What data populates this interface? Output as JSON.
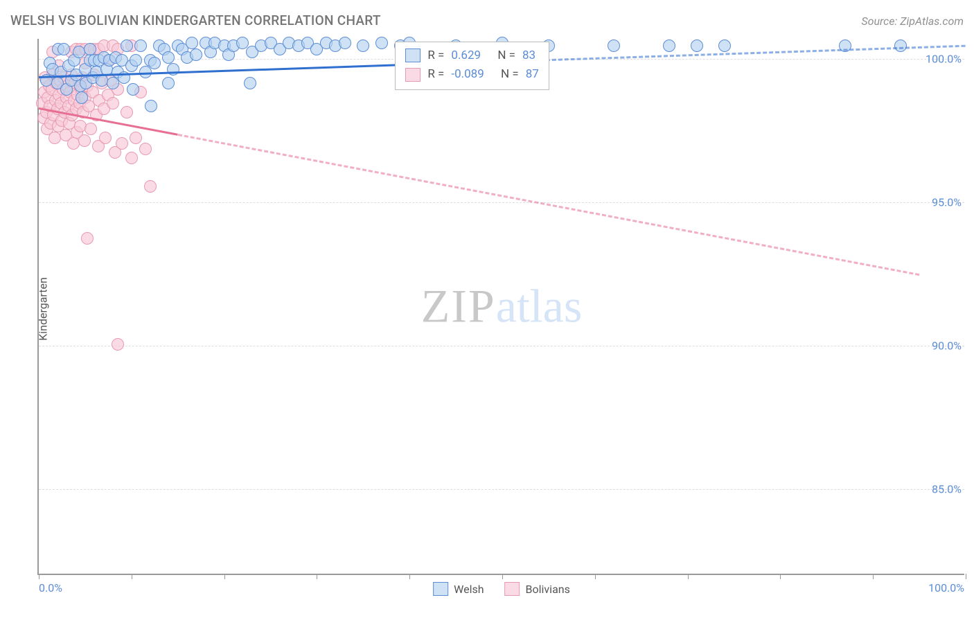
{
  "title": "WELSH VS BOLIVIAN KINDERGARTEN CORRELATION CHART",
  "source": "Source: ZipAtlas.com",
  "ylabel": "Kindergarten",
  "watermark": {
    "zip": "ZIP",
    "atlas": "atlas"
  },
  "axes": {
    "xlim": [
      0,
      100
    ],
    "ylim": [
      82,
      100.7
    ],
    "xticks": [
      0,
      10,
      20,
      30,
      40,
      50,
      60,
      70,
      80,
      90,
      100
    ],
    "xtick_labels": {
      "0": "0.0%",
      "100": "100.0%"
    },
    "yticks": [
      85,
      90,
      95,
      100
    ],
    "ytick_labels": {
      "85": "85.0%",
      "90": "90.0%",
      "95": "95.0%",
      "100": "100.0%"
    },
    "grid_color": "#dddddd",
    "axis_color": "#999999",
    "tick_label_color": "#5b8dd6",
    "label_color": "#555555"
  },
  "series": {
    "welsh": {
      "label": "Welsh",
      "fill_color": "#b4d1f0a6",
      "stroke_color": "#5b8dd6",
      "trend_color": "#2f6fd0",
      "trend_width": 3,
      "trend_dash_after_x": 40,
      "marker_radius": 9,
      "R": "0.629",
      "N": "83",
      "trend": {
        "x1": 0,
        "y1": 99.4,
        "x2": 100,
        "y2": 100.5
      },
      "points": [
        [
          0.8,
          99.2
        ],
        [
          1.2,
          99.8
        ],
        [
          1.5,
          99.6
        ],
        [
          2.1,
          100.3
        ],
        [
          2.0,
          99.1
        ],
        [
          2.4,
          99.5
        ],
        [
          2.7,
          100.3
        ],
        [
          3.0,
          98.9
        ],
        [
          3.2,
          99.7
        ],
        [
          3.5,
          99.2
        ],
        [
          3.8,
          99.9
        ],
        [
          4.0,
          99.4
        ],
        [
          4.3,
          100.2
        ],
        [
          4.5,
          99.0
        ],
        [
          4.6,
          98.6
        ],
        [
          5.0,
          99.6
        ],
        [
          5.1,
          99.1
        ],
        [
          5.5,
          99.9
        ],
        [
          5.5,
          100.3
        ],
        [
          5.8,
          99.3
        ],
        [
          6.0,
          99.9
        ],
        [
          6.2,
          99.5
        ],
        [
          6.5,
          99.9
        ],
        [
          6.8,
          99.2
        ],
        [
          7.0,
          100.0
        ],
        [
          7.3,
          99.6
        ],
        [
          7.6,
          99.9
        ],
        [
          8.0,
          99.1
        ],
        [
          8.3,
          100.0
        ],
        [
          8.5,
          99.5
        ],
        [
          9.0,
          99.9
        ],
        [
          9.2,
          99.3
        ],
        [
          9.5,
          100.4
        ],
        [
          10.0,
          99.7
        ],
        [
          10.2,
          98.9
        ],
        [
          10.5,
          99.9
        ],
        [
          11.0,
          100.4
        ],
        [
          11.5,
          99.5
        ],
        [
          12.0,
          99.9
        ],
        [
          12.1,
          98.3
        ],
        [
          12.5,
          99.8
        ],
        [
          13.0,
          100.4
        ],
        [
          13.5,
          100.3
        ],
        [
          14.0,
          100.0
        ],
        [
          14.0,
          99.1
        ],
        [
          14.5,
          99.6
        ],
        [
          15.0,
          100.4
        ],
        [
          15.5,
          100.3
        ],
        [
          16.0,
          100.0
        ],
        [
          16.5,
          100.5
        ],
        [
          17.0,
          100.1
        ],
        [
          18.0,
          100.5
        ],
        [
          18.5,
          100.2
        ],
        [
          19.0,
          100.5
        ],
        [
          20.0,
          100.4
        ],
        [
          20.5,
          100.1
        ],
        [
          21.0,
          100.4
        ],
        [
          22.0,
          100.5
        ],
        [
          22.8,
          99.1
        ],
        [
          23.0,
          100.2
        ],
        [
          24.0,
          100.4
        ],
        [
          25.0,
          100.5
        ],
        [
          26.0,
          100.3
        ],
        [
          27.0,
          100.5
        ],
        [
          28.0,
          100.4
        ],
        [
          29.0,
          100.5
        ],
        [
          30.0,
          100.3
        ],
        [
          31.0,
          100.5
        ],
        [
          32.0,
          100.4
        ],
        [
          33.0,
          100.5
        ],
        [
          35.0,
          100.4
        ],
        [
          37.0,
          100.5
        ],
        [
          39.0,
          100.4
        ],
        [
          40.0,
          100.5
        ],
        [
          45.0,
          100.4
        ],
        [
          50.0,
          100.5
        ],
        [
          55.0,
          100.4
        ],
        [
          62.0,
          100.4
        ],
        [
          68.0,
          100.4
        ],
        [
          71.0,
          100.4
        ],
        [
          74.0,
          100.4
        ],
        [
          87.0,
          100.4
        ],
        [
          93.0,
          100.4
        ]
      ]
    },
    "bolivians": {
      "label": "Bolivians",
      "fill_color": "#f7c8d7a8",
      "stroke_color": "#e89ab0",
      "trend_color": "#e76f93",
      "trend_width": 3,
      "trend_dash_after_x": 15,
      "marker_radius": 9,
      "R": "-0.089",
      "N": "87",
      "trend": {
        "x1": 0,
        "y1": 98.3,
        "x2": 95,
        "y2": 92.5
      },
      "points": [
        [
          0.4,
          98.4
        ],
        [
          0.5,
          97.9
        ],
        [
          0.6,
          98.8
        ],
        [
          0.7,
          99.3
        ],
        [
          0.8,
          98.1
        ],
        [
          0.9,
          97.5
        ],
        [
          1.0,
          98.6
        ],
        [
          1.1,
          99.0
        ],
        [
          1.2,
          98.3
        ],
        [
          1.3,
          97.7
        ],
        [
          1.4,
          98.9
        ],
        [
          1.5,
          99.4
        ],
        [
          1.5,
          100.2
        ],
        [
          1.6,
          98.0
        ],
        [
          1.7,
          97.2
        ],
        [
          1.8,
          98.5
        ],
        [
          1.9,
          99.1
        ],
        [
          2.0,
          98.2
        ],
        [
          2.1,
          97.6
        ],
        [
          2.2,
          98.7
        ],
        [
          2.2,
          99.7
        ],
        [
          2.3,
          99.2
        ],
        [
          2.4,
          98.4
        ],
        [
          2.5,
          97.8
        ],
        [
          2.6,
          98.9
        ],
        [
          2.7,
          99.3
        ],
        [
          2.8,
          98.1
        ],
        [
          2.9,
          97.3
        ],
        [
          3.0,
          98.6
        ],
        [
          3.1,
          99.0
        ],
        [
          3.2,
          98.3
        ],
        [
          3.3,
          97.7
        ],
        [
          3.4,
          98.8
        ],
        [
          3.5,
          99.4
        ],
        [
          3.5,
          100.2
        ],
        [
          3.6,
          98.0
        ],
        [
          3.7,
          97.0
        ],
        [
          3.8,
          98.5
        ],
        [
          3.9,
          99.1
        ],
        [
          4.0,
          98.2
        ],
        [
          4.0,
          100.3
        ],
        [
          4.1,
          97.4
        ],
        [
          4.2,
          98.7
        ],
        [
          4.3,
          99.2
        ],
        [
          4.4,
          98.4
        ],
        [
          4.5,
          97.6
        ],
        [
          4.5,
          100.3
        ],
        [
          4.6,
          98.9
        ],
        [
          4.7,
          99.3
        ],
        [
          4.8,
          98.1
        ],
        [
          4.9,
          97.1
        ],
        [
          5.0,
          98.6
        ],
        [
          5.0,
          99.8
        ],
        [
          5.0,
          100.3
        ],
        [
          5.2,
          99.0
        ],
        [
          5.4,
          98.3
        ],
        [
          5.5,
          100.3
        ],
        [
          5.6,
          97.5
        ],
        [
          5.8,
          98.8
        ],
        [
          6.0,
          99.4
        ],
        [
          6.0,
          100.3
        ],
        [
          6.2,
          98.0
        ],
        [
          6.4,
          96.9
        ],
        [
          6.5,
          98.5
        ],
        [
          6.5,
          100.3
        ],
        [
          6.8,
          99.1
        ],
        [
          7.0,
          98.2
        ],
        [
          7.0,
          100.4
        ],
        [
          7.2,
          97.2
        ],
        [
          7.5,
          98.7
        ],
        [
          7.5,
          99.9
        ],
        [
          7.8,
          99.2
        ],
        [
          8.0,
          98.4
        ],
        [
          8.0,
          100.4
        ],
        [
          8.2,
          96.7
        ],
        [
          8.5,
          98.9
        ],
        [
          8.5,
          100.3
        ],
        [
          9.0,
          97.0
        ],
        [
          9.5,
          98.1
        ],
        [
          10.0,
          96.5
        ],
        [
          10.0,
          100.4
        ],
        [
          10.5,
          97.2
        ],
        [
          11.0,
          98.8
        ],
        [
          11.5,
          96.8
        ],
        [
          12.0,
          95.5
        ],
        [
          5.2,
          93.7
        ],
        [
          8.5,
          90.0
        ]
      ]
    }
  },
  "stats_box": {
    "top_pct": 0.5,
    "left_pct": 38.5,
    "r_label": "R =",
    "n_label": "N ="
  },
  "legend": {
    "welsh": "Welsh",
    "bolivians": "Bolivians"
  },
  "colors": {
    "background": "#ffffff",
    "title_color": "#757575",
    "source_color": "#909090"
  },
  "fontsize": {
    "title": 19,
    "axis_label": 16,
    "tick": 16,
    "legend": 16,
    "stats": 17,
    "watermark": 68
  }
}
